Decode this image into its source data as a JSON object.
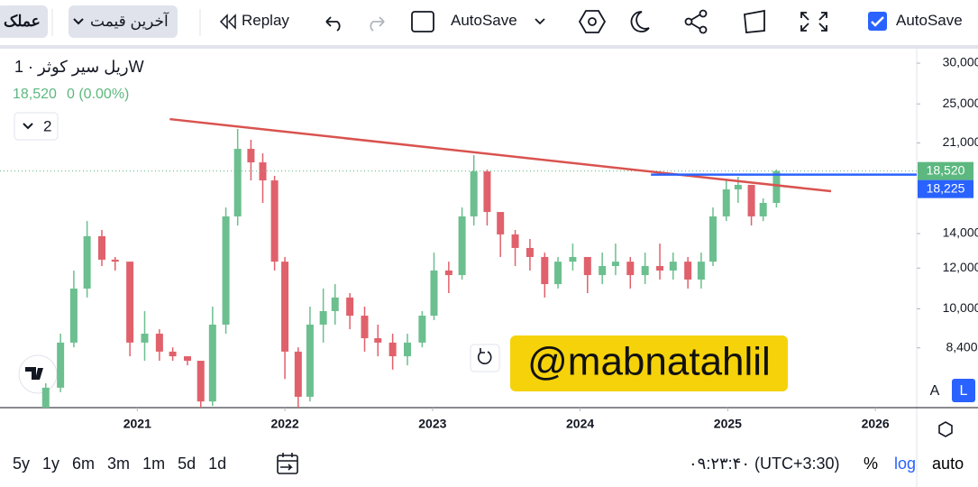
{
  "toolbar": {
    "currency": "عملک",
    "price_type": "آخرین قیمت",
    "replay": "Replay",
    "autosave_menu": "AutoSave",
    "autosave_check": "AutoSave"
  },
  "chart_data": {
    "type": "candlestick",
    "title": "ریل سیر کوثر · 1W",
    "last_label": "18,520",
    "change_label": "0 (0.00%)",
    "indicator_count": "2",
    "watermark": "@mabnatahlil",
    "log_scale": true,
    "grid": false,
    "up_color": "#6cbf8f",
    "down_color": "#e0616b",
    "x": [
      2020.38,
      2020.48,
      2020.57,
      2020.66,
      2020.76,
      2020.85,
      2020.95,
      2021.05,
      2021.15,
      2021.24,
      2021.34,
      2021.43,
      2021.51,
      2021.6,
      2021.68,
      2021.77,
      2021.85,
      2021.93,
      2022.0,
      2022.09,
      2022.17,
      2022.26,
      2022.34,
      2022.44,
      2022.54,
      2022.63,
      2022.73,
      2022.83,
      2022.93,
      2023.01,
      2023.11,
      2023.2,
      2023.28,
      2023.37,
      2023.46,
      2023.56,
      2023.66,
      2023.76,
      2023.85,
      2023.95,
      2024.05,
      2024.15,
      2024.24,
      2024.34,
      2024.44,
      2024.54,
      2024.63,
      2024.73,
      2024.82,
      2024.9,
      2024.99,
      2025.07,
      2025.16,
      2025.24,
      2025.33
    ],
    "open": [
      6430,
      7030,
      8600,
      10950,
      13840,
      12460,
      12350,
      8600,
      8950,
      8260,
      8090,
      7930,
      6610,
      9320,
      15120,
      20450,
      19250,
      17760,
      12350,
      8260,
      6750,
      9320,
      9900,
      10520,
      9700,
      8770,
      8600,
      8090,
      8600,
      9700,
      11870,
      11630,
      15120,
      18490,
      15420,
      13950,
      13130,
      12610,
      11170,
      12350,
      12610,
      11630,
      12110,
      12350,
      11630,
      12110,
      11870,
      12350,
      11400,
      12350,
      15120,
      17060,
      17410,
      15120,
      16060
    ],
    "high": [
      7170,
      8950,
      11870,
      14810,
      14230,
      12610,
      12350,
      9900,
      9130,
      8420,
      8090,
      7930,
      10100,
      15740,
      22350,
      21300,
      20040,
      18120,
      12610,
      8420,
      10100,
      10950,
      11170,
      10730,
      10100,
      9320,
      8950,
      8950,
      9900,
      12860,
      12350,
      15740,
      19880,
      18640,
      15420,
      14230,
      13670,
      12860,
      12610,
      13390,
      12610,
      12860,
      13390,
      12610,
      12860,
      13390,
      12860,
      12610,
      12860,
      15740,
      17760,
      18050,
      17410,
      16390,
      18640
    ],
    "low": [
      6430,
      6890,
      8420,
      10520,
      12110,
      11870,
      8090,
      7930,
      7930,
      7930,
      7770,
      6430,
      6480,
      8950,
      14520,
      17760,
      16060,
      11870,
      7310,
      6430,
      6610,
      8600,
      9320,
      9130,
      8260,
      8090,
      7620,
      7770,
      8420,
      9510,
      10730,
      11400,
      14520,
      14520,
      12610,
      12110,
      11870,
      10520,
      10950,
      11870,
      10730,
      11170,
      11630,
      10950,
      11170,
      11400,
      11400,
      10950,
      10950,
      12110,
      14810,
      16060,
      14520,
      14810,
      15740
    ],
    "close": [
      7030,
      8600,
      10950,
      13840,
      12460,
      12350,
      8600,
      8950,
      8260,
      8090,
      7930,
      6610,
      9320,
      15120,
      20450,
      19250,
      17760,
      12350,
      8260,
      6750,
      9320,
      9900,
      10520,
      9700,
      8770,
      8600,
      8090,
      8600,
      9700,
      11870,
      11630,
      15120,
      18490,
      15420,
      13950,
      13130,
      12610,
      11170,
      12350,
      12610,
      11630,
      12110,
      12350,
      11630,
      12110,
      11870,
      12350,
      11400,
      12350,
      15120,
      17060,
      17410,
      15120,
      16060,
      18520
    ],
    "xlim": [
      2020.07,
      2026.28
    ],
    "xticks": [
      2021,
      2022,
      2023,
      2024,
      2025,
      2026
    ],
    "ylim": [
      6430,
      31490
    ],
    "yticks": [
      {
        "value": 30000,
        "label": "30,000"
      },
      {
        "value": 25000,
        "label": "25,000"
      },
      {
        "value": 21000,
        "label": "21,000"
      },
      {
        "value": 14000,
        "label": "14,000"
      },
      {
        "value": 12000,
        "label": "12,000"
      },
      {
        "value": 10000,
        "label": "10,000"
      },
      {
        "value": 8400,
        "label": "8,400"
      }
    ],
    "trendline": {
      "x": [
        2021.22,
        2025.7
      ],
      "y": [
        23360,
        16920
      ],
      "color": "#d9534f"
    },
    "hline": {
      "x": [
        2024.48,
        2026.28
      ],
      "y": [
        18225,
        18225
      ],
      "color": "#2962ff"
    },
    "price_labels": [
      {
        "value": 18520,
        "label": "18,520",
        "color": "#5cb87f"
      },
      {
        "value": 18225,
        "label": "18,225",
        "color": "#2962ff"
      }
    ],
    "scale_buttons": [
      "A",
      "L"
    ]
  },
  "bottom_bar": {
    "ranges": [
      "5y",
      "1y",
      "6m",
      "3m",
      "1m",
      "5d",
      "1d"
    ],
    "clock": "۰۹:۲۳:۴۰ (UTC+3:30)",
    "buttons": [
      "%",
      "log",
      "auto"
    ]
  }
}
